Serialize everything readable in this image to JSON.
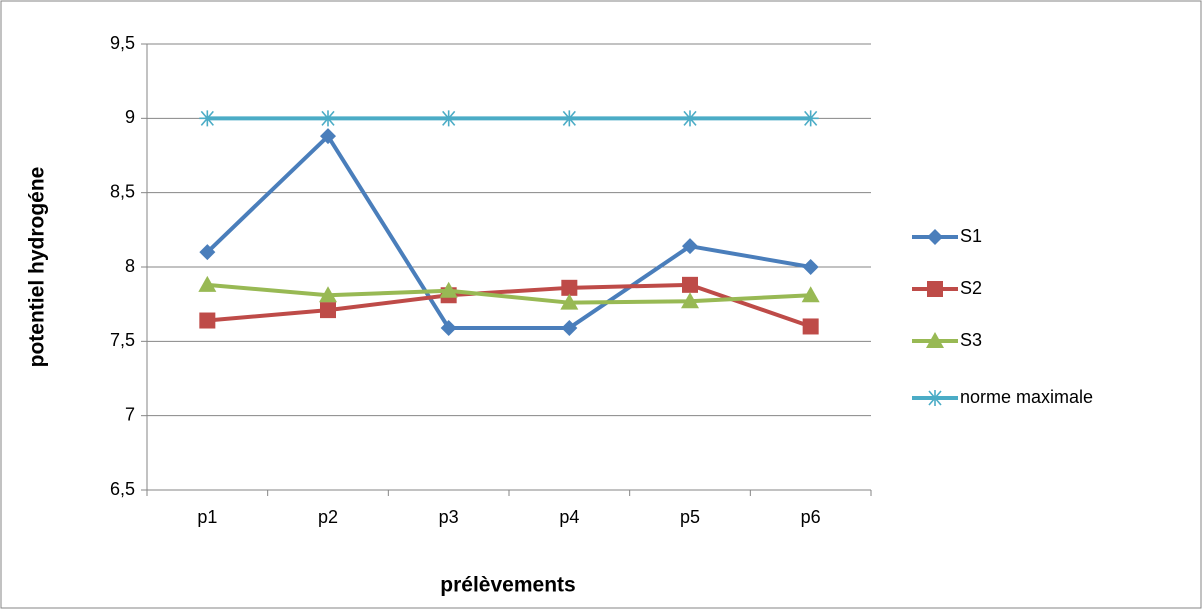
{
  "chart_data": {
    "type": "line",
    "categories": [
      "p1",
      "p2",
      "p3",
      "p4",
      "p5",
      "p6"
    ],
    "series": [
      {
        "name": "S1",
        "color": "#4a7ebb",
        "marker": "diamond",
        "values": [
          8.1,
          8.88,
          7.59,
          7.59,
          8.14,
          8.0
        ]
      },
      {
        "name": "S2",
        "color": "#be4b48",
        "marker": "square",
        "values": [
          7.64,
          7.71,
          7.81,
          7.86,
          7.88,
          7.6
        ]
      },
      {
        "name": "S3",
        "color": "#98b954",
        "marker": "triangle",
        "values": [
          7.88,
          7.81,
          7.84,
          7.76,
          7.77,
          7.81
        ]
      },
      {
        "name": "norme maximale",
        "color": "#4bacc6",
        "marker": "star",
        "values": [
          9,
          9,
          9,
          9,
          9,
          9
        ]
      }
    ],
    "ylim": [
      6.5,
      9.5
    ],
    "yticks": [
      {
        "value": 6.5,
        "label": "6,5"
      },
      7,
      {
        "value": 7.5,
        "label": "7,5"
      },
      8,
      {
        "value": 8.5,
        "label": "8,5"
      },
      9,
      {
        "value": 9.5,
        "label": "9,5"
      }
    ],
    "grid": true,
    "xlabel": "prélèvements",
    "ylabel": "potentiel hydrogéne",
    "legend": "right"
  }
}
